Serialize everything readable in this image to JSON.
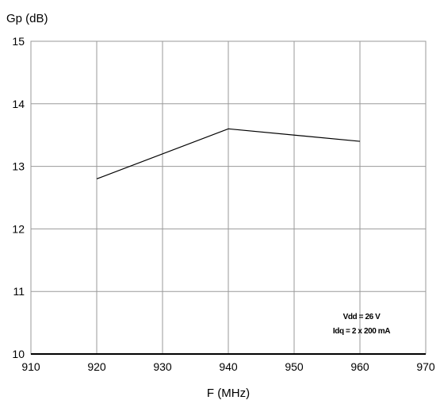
{
  "chart_data": {
    "type": "line",
    "title": "",
    "xlabel": "F (MHz)",
    "ylabel": "Gp (dB)",
    "xlim": [
      910,
      970
    ],
    "ylim": [
      10,
      15
    ],
    "x_ticks": [
      910,
      920,
      930,
      940,
      950,
      960,
      970
    ],
    "y_ticks": [
      10,
      11,
      12,
      13,
      14,
      15
    ],
    "grid": true,
    "legend": "none",
    "series": [
      {
        "x": [
          920,
          940,
          960
        ],
        "y": [
          12.8,
          13.6,
          13.4
        ],
        "color": "#000000"
      }
    ],
    "annotations": [
      "Vdd = 26 V",
      "Idq = 2 x 200 mA"
    ]
  },
  "colors": {
    "grid": "#9a9a9a",
    "axis": "#000000",
    "line": "#000000"
  }
}
